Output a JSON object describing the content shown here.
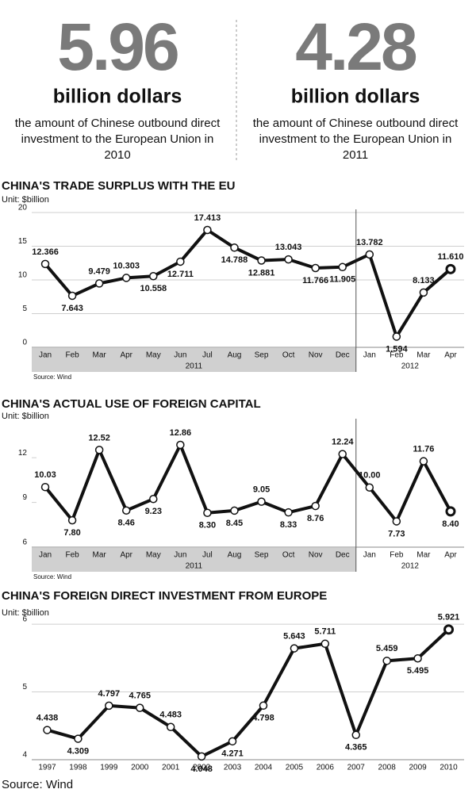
{
  "stats": [
    {
      "value": 5.96,
      "unit": "billion dollars",
      "text": [
        "the amount of Chinese outbound direct",
        "investment to the European Union in",
        "2010"
      ]
    },
    {
      "value": 4.28,
      "unit": "billion dollars",
      "text": [
        "the amount of Chinese outbound direct",
        "investment to the European Union in",
        "2011"
      ]
    }
  ],
  "chart_data": [
    {
      "type": "line",
      "title": "CHINA'S TRADE SURPLUS WITH THE EU",
      "y_label": "Unit: $billion",
      "categories": [
        "Jan",
        "Feb",
        "Mar",
        "Apr",
        "May",
        "Jun",
        "Jul",
        "Aug",
        "Sep",
        "Oct",
        "Nov",
        "Dec",
        "Jan",
        "Feb",
        "Mar",
        "Apr"
      ],
      "groups": [
        "2011",
        "2012"
      ],
      "values": [
        12.366,
        7.643,
        9.479,
        10.303,
        10.558,
        12.711,
        17.413,
        14.788,
        12.881,
        13.043,
        11.766,
        11.905,
        13.782,
        1.594,
        8.133,
        11.61
      ],
      "value_labels": [
        "12.366",
        "7.643",
        "9.479",
        "10.303",
        "10.558",
        "12.711",
        "17.413",
        "14.788",
        "12.881",
        "13.043",
        "11.766",
        "11.905",
        "13.782",
        "1.594",
        "8.133",
        "11.610"
      ],
      "color": "#111111",
      "ylim": [
        0,
        20
      ],
      "yticks": [
        0,
        5,
        10,
        15,
        20
      ],
      "grid": true,
      "source": "Source: Wind"
    },
    {
      "type": "line",
      "title": "CHINA'S ACTUAL USE OF FOREIGN CAPITAL",
      "y_label": "Unit: $billion",
      "categories": [
        "Jan",
        "Feb",
        "Mar",
        "Apr",
        "May",
        "Jun",
        "Jul",
        "Aug",
        "Sep",
        "Oct",
        "Nov",
        "Dec",
        "Jan",
        "Feb",
        "Mar",
        "Apr"
      ],
      "groups": [
        "2011",
        "2012"
      ],
      "values": [
        10.03,
        7.8,
        12.52,
        8.46,
        9.23,
        12.86,
        8.3,
        8.45,
        9.05,
        8.33,
        8.76,
        12.24,
        10,
        7.73,
        11.76,
        8.4
      ],
      "value_labels": [
        "10.03",
        "7.80",
        "12.52",
        "8.46",
        "9.23",
        "12.86",
        "8.30",
        "8.45",
        "9.05",
        "8.33",
        "8.76",
        "12.24",
        "10.00",
        "7.73",
        "11.76",
        "8.40"
      ],
      "color": "#111111",
      "ylim": [
        6,
        14.4
      ],
      "yticks": [
        6,
        9,
        12
      ],
      "grid": false,
      "source": "Source: Wind"
    },
    {
      "type": "line",
      "title": "CHINA'S FOREIGN DIRECT INVESTMENT FROM EUROPE",
      "y_label": "Unit: $billion",
      "categories": [
        "1997",
        "1998",
        "1999",
        "2000",
        "2001",
        "2002",
        "2003",
        "2004",
        "2005",
        "2006",
        "2007",
        "2008",
        "2009",
        "2010"
      ],
      "values": [
        4.438,
        4.309,
        4.797,
        4.765,
        4.483,
        4.048,
        4.271,
        4.798,
        5.643,
        5.711,
        4.365,
        5.459,
        5.495,
        5.921
      ],
      "value_labels": [
        "4.438",
        "4.309",
        "4.797",
        "4.765",
        "4.483",
        "4.048",
        "4.271",
        "4.798",
        "5.643",
        "5.711",
        "4.365",
        "5.459",
        "5.495",
        "5.921"
      ],
      "color": "#111111",
      "ylim": [
        4,
        6.2
      ],
      "yticks": [
        4,
        5,
        6
      ],
      "grid": true,
      "source": "Source: Wind"
    }
  ]
}
